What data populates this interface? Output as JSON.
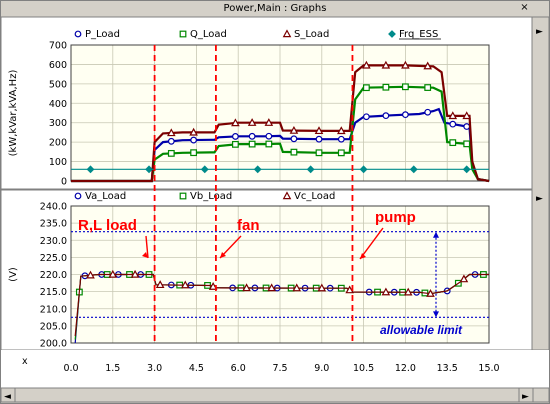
{
  "window": {
    "title": "Power,Main : Graphs",
    "close_glyph": "×",
    "scroll_left_glyph": "◄",
    "scroll_right_glyph": "►",
    "panel_arrow_glyph": "►",
    "x_axis_letter": "x"
  },
  "colors": {
    "p": "#0000aa",
    "q": "#008800",
    "s": "#7a0000",
    "frq": "#008b8b",
    "va": "#0000aa",
    "vb": "#008800",
    "vc": "#7a0000",
    "event_line": "#ff0000",
    "limit_line": "#0000cc",
    "plot_bg": "#fffff2",
    "grid": "#c8c8b4"
  },
  "chart_data": [
    {
      "type": "line",
      "ylabel": "(kW,kVar,kVA,Hz)",
      "ylim": [
        0,
        700
      ],
      "yticks": [
        "0",
        "100",
        "200",
        "300",
        "400",
        "500",
        "600",
        "700"
      ],
      "xlim": [
        0,
        15
      ],
      "grid": true,
      "legend": "top",
      "series": [
        {
          "name": "P_Load",
          "marker": "circle",
          "color_key": "p",
          "points": [
            [
              0,
              0
            ],
            [
              2.9,
              0
            ],
            [
              3.0,
              160
            ],
            [
              3.3,
              200
            ],
            [
              4.0,
              210
            ],
            [
              5.0,
              212
            ],
            [
              5.15,
              212
            ],
            [
              5.3,
              225
            ],
            [
              6.0,
              230
            ],
            [
              7.0,
              230
            ],
            [
              7.5,
              232
            ],
            [
              7.6,
              218
            ],
            [
              9.0,
              215
            ],
            [
              9.9,
              215
            ],
            [
              10.0,
              215
            ],
            [
              10.2,
              300
            ],
            [
              10.5,
              330
            ],
            [
              11.5,
              338
            ],
            [
              12.5,
              345
            ],
            [
              13.0,
              360
            ],
            [
              13.2,
              370
            ],
            [
              13.4,
              300
            ],
            [
              14.3,
              278
            ],
            [
              14.4,
              80
            ],
            [
              14.6,
              10
            ],
            [
              15.0,
              0
            ]
          ],
          "marker_x": [
            3.6,
            4.4,
            5.9,
            6.5,
            7.1,
            8.0,
            8.9,
            9.7,
            10.6,
            11.3,
            12.0,
            12.8,
            13.7,
            14.2
          ]
        },
        {
          "name": "Q_Load",
          "marker": "square",
          "color_key": "q",
          "points": [
            [
              0,
              0
            ],
            [
              2.9,
              0
            ],
            [
              3.0,
              110
            ],
            [
              3.3,
              140
            ],
            [
              4.0,
              145
            ],
            [
              5.0,
              147
            ],
            [
              5.15,
              147
            ],
            [
              5.3,
              180
            ],
            [
              6.0,
              190
            ],
            [
              7.0,
              190
            ],
            [
              7.5,
              192
            ],
            [
              7.6,
              150
            ],
            [
              9.0,
              145
            ],
            [
              9.9,
              145
            ],
            [
              10.0,
              145
            ],
            [
              10.2,
              420
            ],
            [
              10.5,
              480
            ],
            [
              12.0,
              485
            ],
            [
              13.0,
              480
            ],
            [
              13.3,
              460
            ],
            [
              13.5,
              200
            ],
            [
              14.3,
              190
            ],
            [
              14.4,
              60
            ],
            [
              14.6,
              10
            ],
            [
              15.0,
              0
            ]
          ],
          "marker_x": [
            3.6,
            4.4,
            5.9,
            6.5,
            7.1,
            8.0,
            8.9,
            9.7,
            10.6,
            11.3,
            12.0,
            12.8,
            13.7,
            14.2
          ]
        },
        {
          "name": "S_Load",
          "marker": "triangle",
          "color_key": "s",
          "points": [
            [
              0,
              0
            ],
            [
              2.9,
              0
            ],
            [
              3.0,
              200
            ],
            [
              3.3,
              245
            ],
            [
              4.0,
              250
            ],
            [
              5.0,
              250
            ],
            [
              5.15,
              250
            ],
            [
              5.3,
              290
            ],
            [
              6.0,
              300
            ],
            [
              7.0,
              300
            ],
            [
              7.5,
              300
            ],
            [
              7.6,
              260
            ],
            [
              9.0,
              258
            ],
            [
              9.9,
              258
            ],
            [
              10.0,
              258
            ],
            [
              10.2,
              560
            ],
            [
              10.5,
              595
            ],
            [
              12.0,
              595
            ],
            [
              13.0,
              590
            ],
            [
              13.3,
              560
            ],
            [
              13.5,
              335
            ],
            [
              14.3,
              335
            ],
            [
              14.4,
              100
            ],
            [
              14.6,
              10
            ],
            [
              15.0,
              0
            ]
          ],
          "marker_x": [
            3.6,
            4.4,
            5.9,
            6.5,
            7.1,
            8.0,
            8.9,
            9.7,
            10.6,
            11.3,
            12.0,
            12.8,
            13.7,
            14.2
          ]
        },
        {
          "name": "Frq_ESS",
          "marker": "diamond",
          "color_key": "frq",
          "points": [
            [
              0,
              60
            ],
            [
              15,
              60
            ]
          ],
          "marker_x": [
            0.7,
            2.8,
            4.8,
            6.7,
            8.6,
            10.5,
            12.3,
            14.2
          ]
        }
      ],
      "annotations": []
    },
    {
      "type": "line",
      "ylabel": "(V)",
      "ylim": [
        200,
        240
      ],
      "yticks": [
        "200.0",
        "205.0",
        "210.0",
        "215.0",
        "220.0",
        "225.0",
        "230.0",
        "235.0",
        "240.0"
      ],
      "xlim": [
        0,
        15
      ],
      "xticks": [
        "0.0",
        "1.5",
        "3.0",
        "4.5",
        "6.0",
        "7.5",
        "9.0",
        "10.5",
        "12.0",
        "13.5",
        "15.0"
      ],
      "grid": true,
      "legend": "top",
      "series": [
        {
          "name": "Va_Load",
          "marker": "circle",
          "color_key": "va",
          "points": [
            [
              0.15,
              200
            ],
            [
              0.35,
              219.5
            ],
            [
              1.0,
              220
            ],
            [
              2.95,
              220
            ],
            [
              3.05,
              217
            ],
            [
              5.0,
              216.8
            ],
            [
              5.2,
              216.1
            ],
            [
              9.9,
              216
            ],
            [
              10.1,
              214.9
            ],
            [
              12.5,
              214.8
            ],
            [
              12.9,
              214.4
            ],
            [
              13.5,
              215.2
            ],
            [
              14.0,
              218
            ],
            [
              14.3,
              220
            ],
            [
              15.0,
              220
            ]
          ],
          "marker_x": [
            0.5,
            1.1,
            1.7,
            2.5,
            3.6,
            4.3,
            5.8,
            6.6,
            7.4,
            8.4,
            9.3,
            10.7,
            11.6,
            12.4,
            13.5,
            14.5
          ]
        },
        {
          "name": "Vb_Load",
          "marker": "square",
          "color_key": "vb",
          "points": [
            [
              0.15,
              201
            ],
            [
              0.35,
              219.5
            ],
            [
              1.0,
              220
            ],
            [
              2.95,
              220
            ],
            [
              3.05,
              217
            ],
            [
              5.0,
              216.8
            ],
            [
              5.2,
              216.1
            ],
            [
              9.9,
              216
            ],
            [
              10.1,
              214.9
            ],
            [
              12.5,
              214.8
            ],
            [
              12.9,
              214.4
            ],
            [
              13.5,
              215.2
            ],
            [
              14.0,
              218
            ],
            [
              14.3,
              220
            ],
            [
              15.0,
              220
            ]
          ],
          "marker_x": [
            0.3,
            1.3,
            2.1,
            2.8,
            3.9,
            4.9,
            6.1,
            7.0,
            7.9,
            8.8,
            9.7,
            11.0,
            11.9,
            12.7,
            13.9,
            14.8
          ]
        },
        {
          "name": "Vc_Load",
          "marker": "triangle",
          "color_key": "vc",
          "points": [
            [
              0.15,
              202
            ],
            [
              0.35,
              219.5
            ],
            [
              1.0,
              220
            ],
            [
              2.95,
              220
            ],
            [
              3.05,
              217
            ],
            [
              5.0,
              216.8
            ],
            [
              5.2,
              216.1
            ],
            [
              9.9,
              216
            ],
            [
              10.1,
              214.9
            ],
            [
              12.5,
              214.8
            ],
            [
              12.9,
              214.4
            ],
            [
              13.5,
              215.2
            ],
            [
              14.0,
              218
            ],
            [
              14.3,
              220
            ],
            [
              15.0,
              220
            ]
          ],
          "marker_x": [
            0.7,
            1.5,
            2.3,
            3.2,
            4.1,
            5.1,
            6.3,
            7.2,
            8.1,
            9.0,
            10.0,
            11.3,
            12.1,
            12.9,
            14.1
          ]
        }
      ],
      "limit_lines": [
        232.5,
        207.5
      ],
      "annotations": [
        {
          "text": "R,L load",
          "x": 3.0
        },
        {
          "text": "fan",
          "x": 5.2
        },
        {
          "text": "pump",
          "x": 10.1
        }
      ],
      "limit_label": "allowable limit"
    }
  ],
  "event_lines_x": [
    3.0,
    5.2,
    10.1
  ]
}
